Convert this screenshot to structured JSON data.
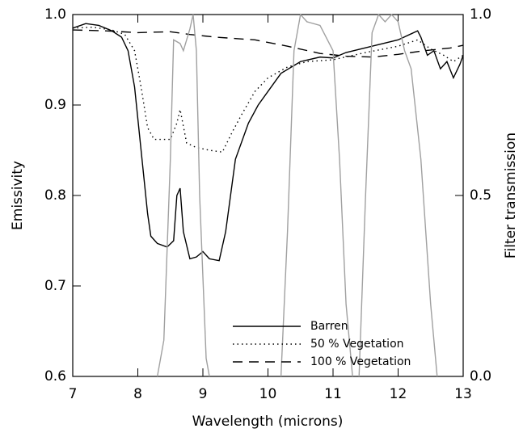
{
  "chart_data": {
    "type": "line",
    "xlabel": "Wavelength (microns)",
    "ylabel": "Emissivity",
    "y2label": "Filter transmission",
    "xlim": [
      7,
      13
    ],
    "xticks": [
      7,
      8,
      9,
      10,
      11,
      12,
      13
    ],
    "ylim": [
      0.6,
      1.0
    ],
    "yticks": [
      0.6,
      0.7,
      0.8,
      0.9,
      {
        "value": 1.0,
        "label": "1.0"
      }
    ],
    "y2lim": [
      0,
      1
    ],
    "y2ticks": [
      {
        "value": 0,
        "label": "0.0"
      },
      0.5,
      {
        "value": 1,
        "label": "1.0"
      }
    ],
    "legend": "lower center",
    "series": [
      {
        "name": "Barren",
        "color": "#000000",
        "dash": "solid",
        "x": [
          7.0,
          7.2,
          7.4,
          7.6,
          7.75,
          7.85,
          7.95,
          8.05,
          8.15,
          8.2,
          8.3,
          8.45,
          8.55,
          8.6,
          8.65,
          8.7,
          8.8,
          8.9,
          9.0,
          9.1,
          9.25,
          9.35,
          9.5,
          9.7,
          9.85,
          10.0,
          10.2,
          10.5,
          10.8,
          11.0,
          11.2,
          11.6,
          12.0,
          12.3,
          12.35,
          12.45,
          12.55,
          12.65,
          12.75,
          12.85,
          12.95,
          13.0
        ],
        "values": [
          0.985,
          0.99,
          0.988,
          0.982,
          0.975,
          0.96,
          0.92,
          0.85,
          0.78,
          0.755,
          0.747,
          0.743,
          0.75,
          0.8,
          0.808,
          0.76,
          0.73,
          0.732,
          0.738,
          0.73,
          0.728,
          0.76,
          0.84,
          0.88,
          0.9,
          0.915,
          0.935,
          0.948,
          0.953,
          0.952,
          0.958,
          0.965,
          0.972,
          0.982,
          0.975,
          0.955,
          0.96,
          0.94,
          0.948,
          0.93,
          0.945,
          0.955
        ]
      },
      {
        "name": "50 % Vegetation",
        "color": "#000000",
        "dash": "dotted",
        "x": [
          7.0,
          7.3,
          7.6,
          7.8,
          7.95,
          8.05,
          8.15,
          8.25,
          8.5,
          8.6,
          8.65,
          8.75,
          8.9,
          9.1,
          9.3,
          9.45,
          9.6,
          9.8,
          10.0,
          10.3,
          10.6,
          11.0,
          11.5,
          12.0,
          12.3,
          12.5,
          12.7,
          12.85,
          13.0
        ],
        "values": [
          0.985,
          0.986,
          0.983,
          0.978,
          0.96,
          0.92,
          0.875,
          0.862,
          0.862,
          0.88,
          0.895,
          0.858,
          0.853,
          0.85,
          0.848,
          0.87,
          0.89,
          0.915,
          0.93,
          0.942,
          0.948,
          0.95,
          0.958,
          0.965,
          0.972,
          0.962,
          0.955,
          0.948,
          0.955
        ]
      },
      {
        "name": "100 % Vegetation",
        "color": "#000000",
        "dash": "dashed",
        "x": [
          7.0,
          7.5,
          8.0,
          8.5,
          8.8,
          9.2,
          9.8,
          10.3,
          10.8,
          11.2,
          11.6,
          12.0,
          12.4,
          12.8,
          13.0
        ],
        "values": [
          0.983,
          0.982,
          0.98,
          0.981,
          0.978,
          0.975,
          0.972,
          0.965,
          0.957,
          0.954,
          0.953,
          0.956,
          0.96,
          0.963,
          0.966
        ]
      },
      {
        "color": "#a0a0a0",
        "dash": "solid",
        "axis": "y2",
        "x": [
          8.3,
          8.4,
          8.5,
          8.55,
          8.65,
          8.7,
          8.8,
          8.85,
          8.9,
          8.95,
          9.05,
          9.1,
          9.6,
          10.2,
          10.3,
          10.4,
          10.5,
          10.6,
          10.8,
          11.0,
          11.1,
          11.2,
          11.3,
          11.35,
          11.4,
          11.5,
          11.6,
          11.7,
          11.8,
          11.9,
          12.0,
          12.1,
          12.2,
          12.35,
          12.5,
          12.6
        ],
        "values": [
          0,
          0.1,
          0.6,
          0.93,
          0.92,
          0.9,
          0.96,
          1.0,
          0.9,
          0.5,
          0.05,
          0,
          null,
          0,
          0.4,
          0.9,
          1.0,
          0.98,
          0.97,
          0.9,
          0.6,
          0.2,
          0,
          null,
          0,
          0.5,
          0.95,
          1.0,
          0.98,
          1.0,
          0.98,
          0.9,
          0.85,
          0.6,
          0.2,
          0
        ]
      }
    ]
  }
}
